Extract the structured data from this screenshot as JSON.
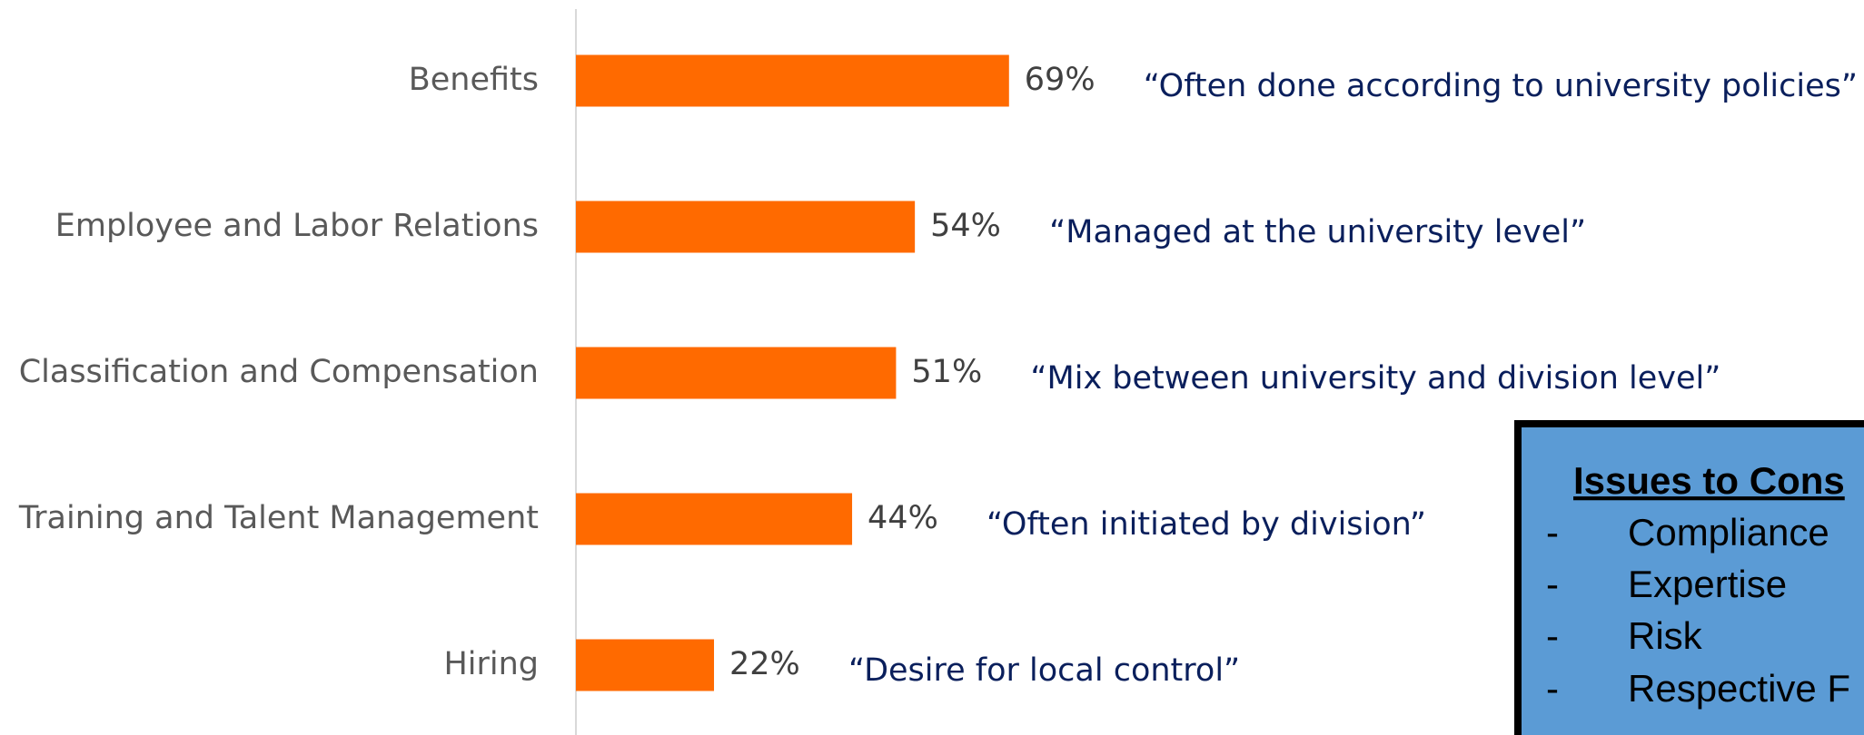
{
  "chart_data": {
    "type": "bar",
    "orientation": "horizontal",
    "categories": [
      "Benefits",
      "Employee and Labor Relations",
      "Classification and Compensation",
      "Training and Talent Management",
      "Hiring"
    ],
    "values": [
      69,
      54,
      51,
      44,
      22
    ],
    "value_labels": [
      "69%",
      "54%",
      "51%",
      "44%",
      "22%"
    ],
    "color": "#ff6a00",
    "xlim": [
      0,
      100
    ],
    "annotations": [
      "“Often done according to university policies”",
      "“Managed at the university level”",
      "“Mix between university and division level”",
      "“Often initiated by division”",
      "“Desire for local control”"
    ]
  },
  "callout_box": {
    "title": "Issues to Cons",
    "items": [
      "Compliance",
      "Expertise",
      "Risk",
      "Respective F"
    ]
  }
}
